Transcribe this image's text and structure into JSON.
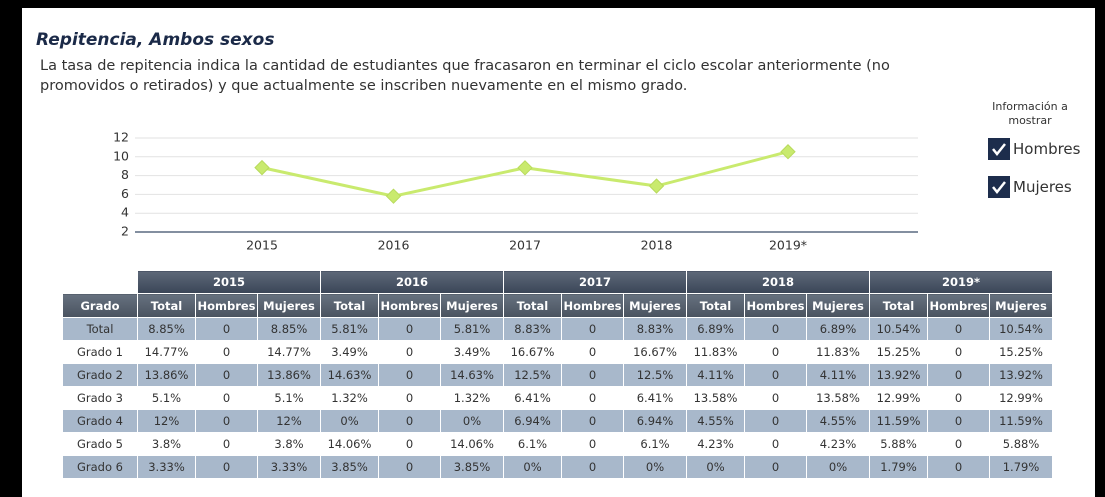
{
  "header": {
    "title": "Repitencia, Ambos sexos",
    "description": "La tasa de repitencia indica la cantidad de estudiantes que fracasaron en terminar el ciclo escolar anteriormente (no promovidos o retirados) y que actualmente se inscriben nuevamente en el mismo grado."
  },
  "panel": {
    "heading": "Información a mostrar",
    "options": [
      "Hombres",
      "Mujeres"
    ]
  },
  "chart_data": {
    "type": "line",
    "categories": [
      "2015",
      "2016",
      "2017",
      "2018",
      "2019*"
    ],
    "values": [
      8.85,
      5.81,
      8.83,
      6.89,
      10.54
    ],
    "color": "#c9ea6e",
    "ylim": [
      2,
      12
    ],
    "yticks": [
      2,
      4,
      6,
      8,
      10,
      12
    ],
    "grid": true
  },
  "table": {
    "group_headers": [
      "2015",
      "2016",
      "2017",
      "2018",
      "2019*"
    ],
    "column_headers": [
      "Grado",
      "Total",
      "Hombres",
      "Mujeres",
      "Total",
      "Hombres",
      "Mujeres",
      "Total",
      "Hombres",
      "Mujeres",
      "Total",
      "Hombres",
      "Mujeres",
      "Total",
      "Hombres",
      "Mujeres"
    ],
    "rows": [
      [
        "Total",
        "8.85%",
        "0",
        "8.85%",
        "5.81%",
        "0",
        "5.81%",
        "8.83%",
        "0",
        "8.83%",
        "6.89%",
        "0",
        "6.89%",
        "10.54%",
        "0",
        "10.54%"
      ],
      [
        "Grado 1",
        "14.77%",
        "0",
        "14.77%",
        "3.49%",
        "0",
        "3.49%",
        "16.67%",
        "0",
        "16.67%",
        "11.83%",
        "0",
        "11.83%",
        "15.25%",
        "0",
        "15.25%"
      ],
      [
        "Grado 2",
        "13.86%",
        "0",
        "13.86%",
        "14.63%",
        "0",
        "14.63%",
        "12.5%",
        "0",
        "12.5%",
        "4.11%",
        "0",
        "4.11%",
        "13.92%",
        "0",
        "13.92%"
      ],
      [
        "Grado 3",
        "5.1%",
        "0",
        "5.1%",
        "1.32%",
        "0",
        "1.32%",
        "6.41%",
        "0",
        "6.41%",
        "13.58%",
        "0",
        "13.58%",
        "12.99%",
        "0",
        "12.99%"
      ],
      [
        "Grado 4",
        "12%",
        "0",
        "12%",
        "0%",
        "0",
        "0%",
        "6.94%",
        "0",
        "6.94%",
        "4.55%",
        "0",
        "4.55%",
        "11.59%",
        "0",
        "11.59%"
      ],
      [
        "Grado 5",
        "3.8%",
        "0",
        "3.8%",
        "14.06%",
        "0",
        "14.06%",
        "6.1%",
        "0",
        "6.1%",
        "4.23%",
        "0",
        "4.23%",
        "5.88%",
        "0",
        "5.88%"
      ],
      [
        "Grado 6",
        "3.33%",
        "0",
        "3.33%",
        "3.85%",
        "0",
        "3.85%",
        "0%",
        "0",
        "0%",
        "0%",
        "0",
        "0%",
        "1.79%",
        "0",
        "1.79%"
      ]
    ]
  }
}
